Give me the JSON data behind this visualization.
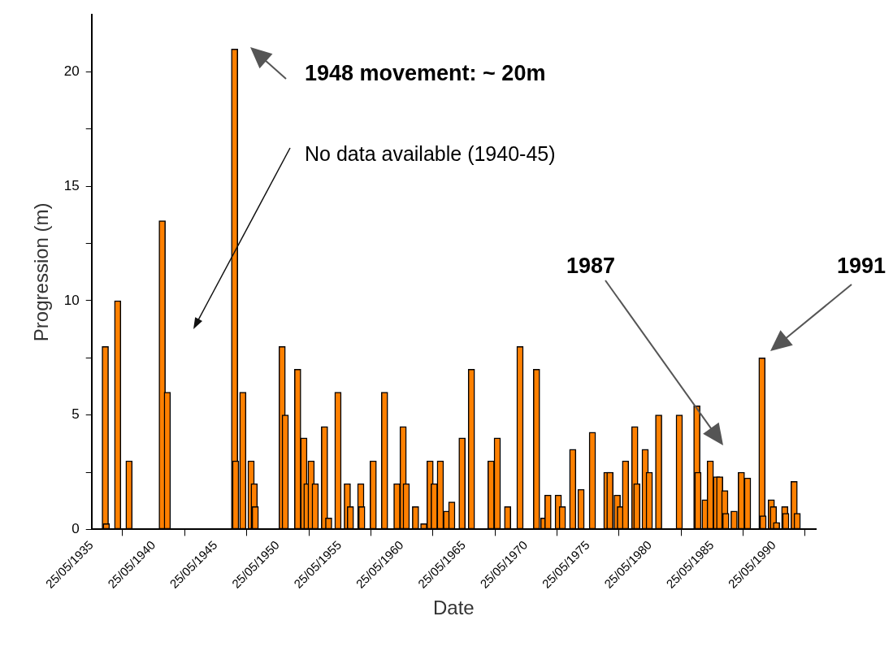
{
  "chart_data": {
    "type": "bar",
    "xlabel": "Date",
    "ylabel": "Progression (m)",
    "color": "#ff8000",
    "x": [
      "1936-07",
      "1936-08",
      "1937-07",
      "1938-06",
      "1941-02",
      "1941-07",
      "1946-12",
      "1947-01",
      "1947-08",
      "1948-04",
      "1948-07",
      "1948-08",
      "1950-10",
      "1951-01",
      "1952-01",
      "1952-07",
      "1952-10",
      "1953-02",
      "1953-06",
      "1954-03",
      "1954-07",
      "1955-04",
      "1956-01",
      "1956-04",
      "1957-02",
      "1957-03",
      "1958-02",
      "1959-01",
      "1960-01",
      "1960-07",
      "1960-10",
      "1961-07",
      "1962-03",
      "1962-09",
      "1963-01",
      "1963-07",
      "1964-01",
      "1964-06",
      "1965-04",
      "1966-01",
      "1967-08",
      "1968-02",
      "1968-12",
      "1969-12",
      "1971-04",
      "1971-11",
      "1972-03",
      "1973-01",
      "1973-05",
      "1974-03",
      "1974-11",
      "1975-10",
      "1976-12",
      "1977-03",
      "1977-10",
      "1978-01",
      "1978-06",
      "1979-03",
      "1979-05",
      "1980-01",
      "1980-05",
      "1981-02",
      "1982-10",
      "1984-03",
      "1984-04",
      "1984-11",
      "1985-04",
      "1985-10",
      "1986-01",
      "1986-06",
      "1986-07",
      "1987-03",
      "1987-10",
      "1988-04",
      "1989-06",
      "1989-07",
      "1990-03",
      "1990-05",
      "1990-08",
      "1991-04",
      "1991-05",
      "1992-01",
      "1992-04"
    ],
    "values": [
      8,
      0.25,
      10,
      3,
      13.5,
      6,
      21,
      3,
      6,
      3,
      2,
      1,
      8,
      5,
      7,
      4,
      2,
      3,
      2,
      4.5,
      0.5,
      6,
      2,
      1,
      2,
      1,
      3,
      6,
      2,
      4.5,
      2,
      1,
      0.25,
      3,
      2,
      3,
      0.8,
      1.2,
      4,
      7,
      3,
      4,
      1,
      8,
      7,
      0.5,
      1.5,
      1.5,
      1,
      3.5,
      1.75,
      4.25,
      2.5,
      2.5,
      1.5,
      1,
      3,
      4.5,
      2,
      3.5,
      2.5,
      5,
      5,
      5.4,
      2.5,
      1.3,
      3,
      2.3,
      2.3,
      1.7,
      0.7,
      0.8,
      2.5,
      2.25,
      7.5,
      0.6,
      1.3,
      1,
      0.3,
      1,
      0.7,
      2.1,
      0.7
    ],
    "xlim": [
      "1935-05-25",
      "1993-10"
    ],
    "xticks": [
      {
        "value": "1935-05-25",
        "label": "25/05/1935"
      },
      {
        "value": "1940-05-25",
        "label": "25/05/1940"
      },
      {
        "value": "1945-05-25",
        "label": "25/05/1945"
      },
      {
        "value": "1950-05-25",
        "label": "25/05/1950"
      },
      {
        "value": "1955-05-25",
        "label": "25/05/1955"
      },
      {
        "value": "1960-05-25",
        "label": "25/05/1960"
      },
      {
        "value": "1965-05-25",
        "label": "25/05/1965"
      },
      {
        "value": "1970-05-25",
        "label": "25/05/1970"
      },
      {
        "value": "1975-05-25",
        "label": "25/05/1975"
      },
      {
        "value": "1980-05-25",
        "label": "25/05/1980"
      },
      {
        "value": "1985-05-25",
        "label": "25/05/1985"
      },
      {
        "value": "1990-05-25",
        "label": "25/05/1990"
      }
    ],
    "ylim": [
      0,
      22.5
    ],
    "yticks": [
      0,
      {
        "value": 2.5,
        "label": null
      },
      5,
      {
        "value": 7.5,
        "label": null
      },
      10,
      {
        "value": 12.5,
        "label": null
      },
      15,
      {
        "value": 17.5,
        "label": null
      },
      20
    ],
    "grid": false,
    "legend": false,
    "annotations": [
      "1948 movement: ~ 20m",
      "No data available (1940-45)",
      "1987",
      "1991"
    ]
  }
}
